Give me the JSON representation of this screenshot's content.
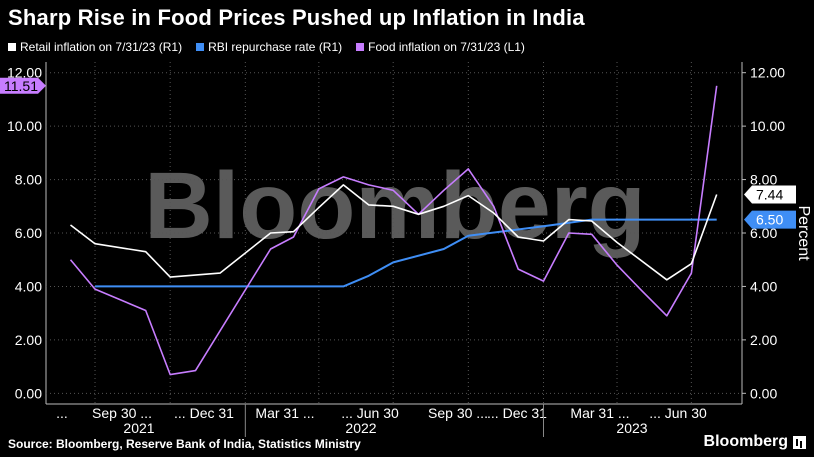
{
  "title": "Sharp Rise in Food Prices Pushed up Inflation in India",
  "legend": [
    {
      "label": "Retail inflation on 7/31/23 (R1)",
      "color": "#ffffff"
    },
    {
      "label": "RBI repurchase rate (R1)",
      "color": "#3f8ef5"
    },
    {
      "label": "Food inflation on 7/31/23 (L1)",
      "color": "#c77dff"
    }
  ],
  "footer": {
    "source": "Source: Bloomberg, Reserve Bank of India, Statistics Ministry",
    "brand": "Bloomberg"
  },
  "watermark": "Bloomberg",
  "chart_data": {
    "type": "line",
    "left_axis": {
      "ticks": [
        "0.00",
        "2.00",
        "4.00",
        "6.00",
        "8.00",
        "10.00",
        "12.00"
      ],
      "range": [
        -0.4,
        12.4
      ]
    },
    "right_axis": {
      "ticks": [
        "0.00",
        "2.00",
        "4.00",
        "6.00",
        "8.00",
        "10.00",
        "12.00"
      ],
      "range": [
        -0.4,
        12.4
      ],
      "label": "Percent"
    },
    "x_tick_labels": [
      "...",
      "Sep 30 ...",
      "... Dec 31",
      "Mar 31 ...",
      "... Jun 30",
      "Sep 30 ...",
      "... Dec 31",
      "Mar 31 ...",
      "... Jun 30"
    ],
    "year_labels": [
      "2021",
      "2022",
      "2023"
    ],
    "callouts": {
      "left": "11.51",
      "right_retail": "7.44",
      "right_rate": "6.50"
    },
    "series": [
      {
        "name": "Retail inflation on 7/31/23 (R1)",
        "axis": "right",
        "color": "#ffffff",
        "x": [
          "2021-05-31",
          "2021-06-30",
          "2021-08-31",
          "2021-09-30",
          "2021-11-30",
          "2022-01-31",
          "2022-02-28",
          "2022-03-31",
          "2022-04-30",
          "2022-05-31",
          "2022-06-30",
          "2022-07-31",
          "2022-08-31",
          "2022-09-30",
          "2022-10-31",
          "2022-11-30",
          "2022-12-31",
          "2023-01-31",
          "2023-02-28",
          "2023-03-31",
          "2023-05-31",
          "2023-06-30",
          "2023-07-31"
        ],
        "y": [
          6.3,
          5.6,
          5.3,
          4.35,
          4.5,
          6.0,
          6.05,
          6.95,
          7.8,
          7.05,
          7.0,
          6.7,
          7.0,
          7.4,
          6.75,
          5.85,
          5.7,
          6.5,
          6.45,
          5.65,
          4.25,
          4.85,
          7.44
        ]
      },
      {
        "name": "RBI repurchase rate (R1)",
        "axis": "right",
        "color": "#3f8ef5",
        "x": [
          "2021-06-30",
          "2022-04-30",
          "2022-05-31",
          "2022-06-30",
          "2022-08-31",
          "2022-09-30",
          "2022-12-31",
          "2023-02-28",
          "2023-07-31"
        ],
        "y": [
          4.0,
          4.0,
          4.4,
          4.9,
          5.4,
          5.9,
          6.25,
          6.5,
          6.5
        ]
      },
      {
        "name": "Food inflation on 7/31/23 (L1)",
        "axis": "left",
        "color": "#c77dff",
        "x": [
          "2021-05-31",
          "2021-06-30",
          "2021-08-31",
          "2021-09-30",
          "2021-10-31",
          "2022-01-31",
          "2022-02-28",
          "2022-03-31",
          "2022-04-30",
          "2022-05-31",
          "2022-06-30",
          "2022-07-31",
          "2022-08-31",
          "2022-09-30",
          "2022-10-31",
          "2022-11-30",
          "2022-12-31",
          "2023-01-31",
          "2023-02-28",
          "2023-03-31",
          "2023-04-30",
          "2023-05-31",
          "2023-06-30",
          "2023-07-31"
        ],
        "y": [
          5.0,
          3.9,
          3.1,
          0.7,
          0.85,
          5.4,
          5.85,
          7.65,
          8.1,
          7.8,
          7.6,
          6.7,
          7.6,
          8.4,
          7.0,
          4.65,
          4.2,
          6.0,
          5.95,
          4.8,
          3.85,
          2.9,
          4.5,
          11.51
        ]
      }
    ]
  }
}
